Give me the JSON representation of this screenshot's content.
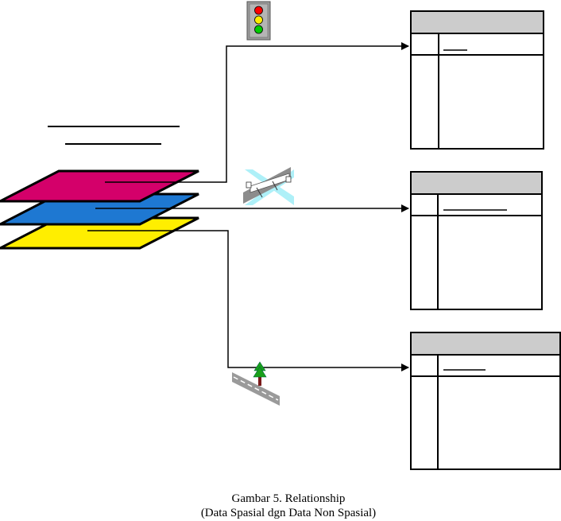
{
  "caption": {
    "line1": "Gambar 5. Relationship",
    "line2": "(Data Spasial dgn Data Non Spasial)"
  },
  "colors": {
    "layer_top": "#d4006a",
    "layer_middle": "#1e78d2",
    "layer_bottom": "#ffee00",
    "table_header": "#cccccc",
    "bridge": "#aef0f8"
  },
  "icons": [
    "traffic-light-icon",
    "bridge-icon",
    "road-with-tree-icon"
  ]
}
